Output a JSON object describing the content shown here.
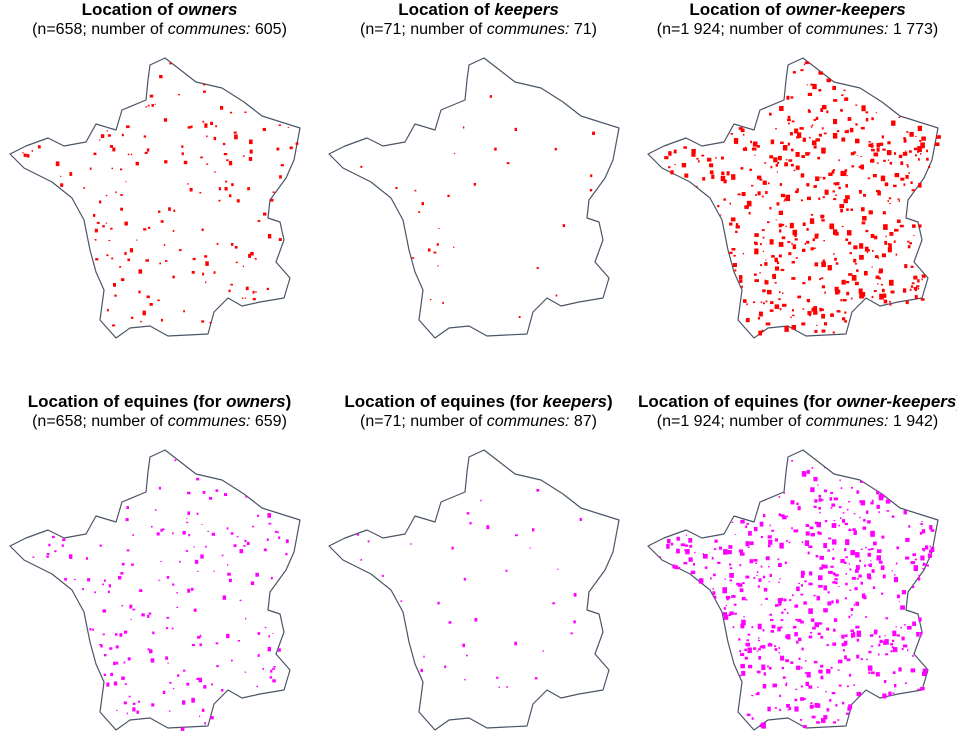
{
  "colors": {
    "owners_dots": "#ff0000",
    "equines_dots": "#ff00ff",
    "outline": "#4a5568"
  },
  "panels": [
    {
      "title_prefix": "Location of ",
      "title_emph": "owners",
      "title_suffix": "",
      "sub_prefix": "(n=658;  number of ",
      "sub_emph": "communes:",
      "sub_suffix": " 605)",
      "dot_color": "#ff0000",
      "density": 0.45,
      "shown_dots": 170
    },
    {
      "title_prefix": "Location of ",
      "title_emph": "keepers",
      "title_suffix": "",
      "sub_prefix": "(n=71; number of ",
      "sub_emph": "communes:",
      "sub_suffix": " 71)",
      "dot_color": "#ff0000",
      "density": 0.08,
      "shown_dots": 30
    },
    {
      "title_prefix": "Location of ",
      "title_emph": "owner-keepers",
      "title_suffix": "",
      "sub_prefix": "(n=1 924; number of ",
      "sub_emph": "communes:",
      "sub_suffix": " 1 773)",
      "dot_color": "#ff0000",
      "density": 1.0,
      "shown_dots": 520
    },
    {
      "title_prefix": "Location of equines (for ",
      "title_emph": "owners",
      "title_suffix": ")",
      "sub_prefix": "(n=658;  number of ",
      "sub_emph": "communes:",
      "sub_suffix": " 659)",
      "dot_color": "#ff00ff",
      "density": 0.45,
      "shown_dots": 190
    },
    {
      "title_prefix": "Location of equines (for ",
      "title_emph": "keepers",
      "title_suffix": ")",
      "sub_prefix": "(n=71; number of ",
      "sub_emph": "communes:",
      "sub_suffix": " 87)",
      "dot_color": "#ff00ff",
      "density": 0.1,
      "shown_dots": 38
    },
    {
      "title_prefix": "Location of equines (for ",
      "title_emph": "owner-keepers",
      "title_suffix": ")",
      "sub_prefix": "(n=1 924; number of ",
      "sub_emph": "communes:",
      "sub_suffix": " 1 942)",
      "dot_color": "#ff00ff",
      "density": 1.0,
      "shown_dots": 560
    }
  ]
}
